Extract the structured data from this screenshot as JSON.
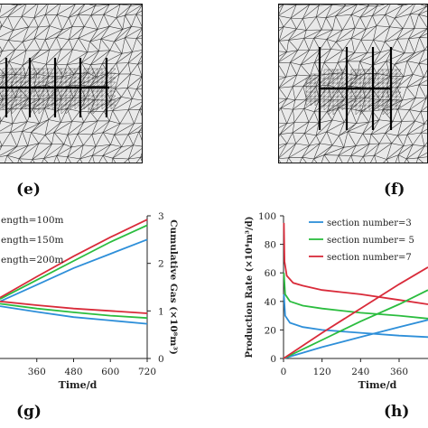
{
  "labels": {
    "e": "(e)",
    "f": "(f)",
    "g": "(g)",
    "h": "(h)"
  },
  "chart_data": [
    {
      "type": "line",
      "panel": "g",
      "xlabel": "Time/d",
      "ylabel_right": "Cumulative Gas (×10⁸m³)",
      "x_ticks": [
        "360",
        "480",
        "600",
        "720"
      ],
      "right_ticks": [
        "0",
        "1",
        "2",
        "3"
      ],
      "xlim": [
        240,
        720
      ],
      "ylim_right": [
        0,
        3
      ],
      "legend": [
        "ength=100m",
        "ength=150m",
        "ength=200m"
      ],
      "legend_placement": "top-left",
      "series": [
        {
          "name": "ength=100m",
          "color": "#2e8fd9",
          "kind": "cumulative",
          "x": [
            240,
            360,
            480,
            600,
            720
          ],
          "y": [
            1.2,
            1.55,
            1.9,
            2.2,
            2.5
          ]
        },
        {
          "name": "ength=150m",
          "color": "#2bbd3f",
          "kind": "cumulative",
          "x": [
            240,
            360,
            480,
            600,
            720
          ],
          "y": [
            1.25,
            1.65,
            2.05,
            2.45,
            2.8
          ]
        },
        {
          "name": "ength=200m",
          "color": "#d92b3a",
          "kind": "cumulative",
          "x": [
            240,
            360,
            480,
            600,
            720
          ],
          "y": [
            1.28,
            1.72,
            2.15,
            2.55,
            2.92
          ]
        },
        {
          "name": "ength=100m",
          "color": "#2e8fd9",
          "kind": "rate",
          "x": [
            240,
            360,
            480,
            600,
            720
          ],
          "y": [
            1.1,
            0.98,
            0.87,
            0.8,
            0.73
          ]
        },
        {
          "name": "ength=150m",
          "color": "#2bbd3f",
          "kind": "rate",
          "x": [
            240,
            360,
            480,
            600,
            720
          ],
          "y": [
            1.15,
            1.05,
            0.97,
            0.9,
            0.85
          ]
        },
        {
          "name": "ength=200m",
          "color": "#d92b3a",
          "kind": "rate",
          "x": [
            240,
            360,
            480,
            600,
            720
          ],
          "y": [
            1.2,
            1.12,
            1.05,
            1.0,
            0.95
          ]
        }
      ]
    },
    {
      "type": "line",
      "panel": "h",
      "xlabel": "Time/d",
      "ylabel": "Production Rate (×10⁴m³/d)",
      "x_ticks": [
        "0",
        "120",
        "240",
        "360"
      ],
      "y_ticks": [
        "0",
        "20",
        "40",
        "60",
        "80",
        "100"
      ],
      "xlim": [
        0,
        450
      ],
      "ylim": [
        0,
        100
      ],
      "legend": [
        "section number=3",
        "section number= 5",
        "section number=7"
      ],
      "legend_placement": "top-right",
      "series": [
        {
          "name": "section number=3",
          "color": "#2e8fd9",
          "kind": "rate",
          "x": [
            1,
            5,
            20,
            60,
            120,
            240,
            360,
            450
          ],
          "y": [
            45,
            30,
            25,
            22,
            20,
            18,
            16,
            15
          ]
        },
        {
          "name": "section number= 5",
          "color": "#2bbd3f",
          "kind": "rate",
          "x": [
            1,
            5,
            20,
            60,
            120,
            240,
            360,
            450
          ],
          "y": [
            60,
            45,
            40,
            37,
            35,
            32,
            30,
            28
          ]
        },
        {
          "name": "section number=7",
          "color": "#d92b3a",
          "kind": "rate",
          "x": [
            1,
            3,
            10,
            30,
            60,
            120,
            240,
            360,
            450
          ],
          "y": [
            95,
            68,
            58,
            53,
            51,
            48,
            45,
            41,
            38
          ]
        },
        {
          "name": "section number=3",
          "color": "#2e8fd9",
          "kind": "cumulative",
          "x": [
            0,
            120,
            240,
            360,
            450
          ],
          "y": [
            0,
            8,
            15,
            22,
            27
          ]
        },
        {
          "name": "section number= 5",
          "color": "#2bbd3f",
          "kind": "cumulative",
          "x": [
            0,
            120,
            240,
            360,
            450
          ],
          "y": [
            0,
            13,
            26,
            38,
            48
          ]
        },
        {
          "name": "section number=7",
          "color": "#d92b3a",
          "kind": "cumulative",
          "x": [
            0,
            120,
            240,
            360,
            450
          ],
          "y": [
            0,
            18,
            35,
            52,
            64
          ]
        }
      ]
    }
  ]
}
